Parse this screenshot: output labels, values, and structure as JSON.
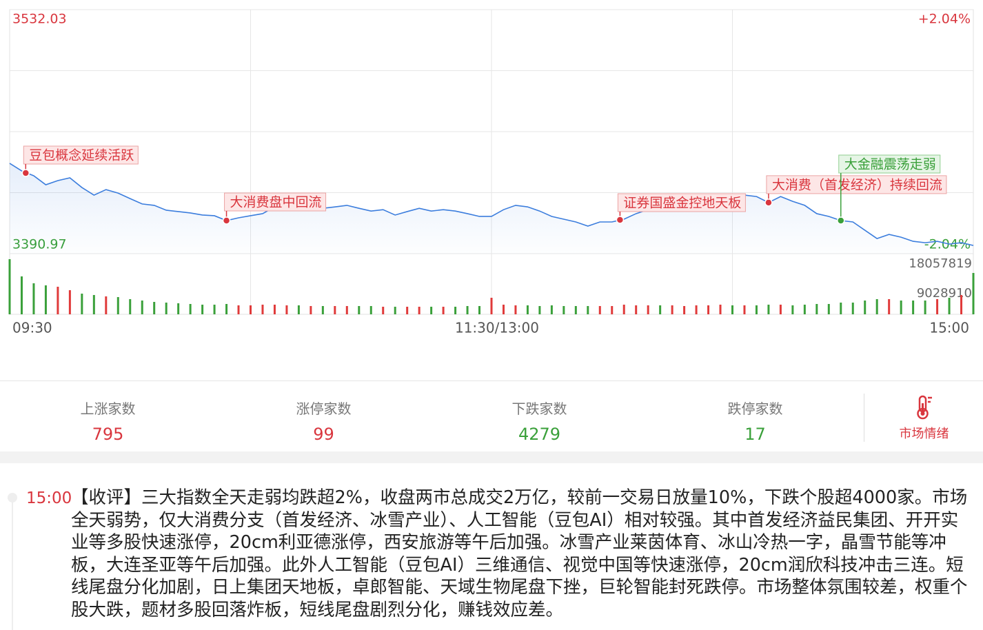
{
  "chart_data": {
    "type": "line",
    "xlim": [
      0,
      240
    ],
    "xticks": [
      {
        "value": 0,
        "label": "09:30"
      },
      {
        "value": 60,
        "label": null
      },
      {
        "value": 120,
        "label": "11:30/13:00"
      },
      {
        "value": 180,
        "label": null
      },
      {
        "value": 240,
        "label": "15:00"
      }
    ],
    "ylim": [
      3390.97,
      3532.03
    ],
    "yticks": [
      3532.03,
      {
        "value": 3496.77,
        "label": null
      },
      {
        "value": 3461.5,
        "label": null
      },
      {
        "value": 3426.24,
        "label": null
      },
      3390.97
    ],
    "y2lim": [
      -2.04,
      2.04
    ],
    "y2ticks": [
      {
        "value": 2.04,
        "label": "+2.04%"
      },
      {
        "value": -2.04,
        "label": "-2.04%"
      }
    ],
    "grid": true,
    "x": [
      0,
      3,
      6,
      9,
      12,
      15,
      18,
      21,
      24,
      27,
      30,
      33,
      36,
      39,
      42,
      45,
      48,
      51,
      54,
      57,
      60,
      63,
      66,
      69,
      72,
      75,
      78,
      81,
      84,
      87,
      90,
      93,
      96,
      99,
      102,
      105,
      108,
      111,
      114,
      117,
      120,
      123,
      126,
      129,
      132,
      135,
      138,
      141,
      144,
      147,
      150,
      153,
      156,
      159,
      162,
      165,
      168,
      171,
      174,
      177,
      180,
      183,
      186,
      189,
      192,
      195,
      198,
      201,
      204,
      207,
      210,
      213,
      216,
      219,
      222,
      225,
      228,
      231,
      234,
      237,
      240
    ],
    "series": [
      {
        "color": "#3b7ddd",
        "values": [
          3443.2,
          3438.8,
          3436.0,
          3430.8,
          3433.2,
          3434.8,
          3429.2,
          3424.8,
          3428.0,
          3426.0,
          3422.8,
          3419.7,
          3418.9,
          3416.1,
          3415.3,
          3414.5,
          3413.3,
          3412.9,
          3410.1,
          3411.7,
          3412.9,
          3414.1,
          3418.0,
          3418.9,
          3418.0,
          3418.4,
          3417.2,
          3418.0,
          3418.9,
          3417.2,
          3415.6,
          3416.4,
          3413.3,
          3415.3,
          3417.2,
          3415.6,
          3416.4,
          3415.6,
          3414.1,
          3412.5,
          3412.5,
          3416.4,
          3418.9,
          3418.0,
          3415.6,
          3412.5,
          3410.9,
          3409.3,
          3406.9,
          3409.3,
          3409.3,
          3410.9,
          3414.1,
          3416.4,
          3415.6,
          3417.2,
          3419.7,
          3419.7,
          3421.2,
          3425.2,
          3423.2,
          3424.8,
          3424.0,
          3420.5,
          3424.0,
          3421.2,
          3418.9,
          3414.1,
          3412.5,
          3410.1,
          3409.3,
          3404.5,
          3399.7,
          3402.1,
          3400.5,
          3398.1,
          3397.3,
          3398.1,
          3396.5,
          3397.3,
          3395.7
        ]
      }
    ],
    "volume": {
      "ylim": [
        0,
        18057819
      ],
      "yticks": [
        18057819,
        9028910
      ],
      "up_color": "#e03a3a",
      "down_color": "#3aa03a",
      "values": [
        16800000,
        11550000,
        9450000,
        8820000,
        8400000,
        7350000,
        6300000,
        5880000,
        5460000,
        5250000,
        4620000,
        4200000,
        3780000,
        3570000,
        3360000,
        3150000,
        2940000,
        2940000,
        3150000,
        2730000,
        2730000,
        2940000,
        2940000,
        2730000,
        2730000,
        2520000,
        2520000,
        2520000,
        2520000,
        2520000,
        2520000,
        2310000,
        2310000,
        2310000,
        2310000,
        2310000,
        2310000,
        2310000,
        2520000,
        2520000,
        5040000,
        2940000,
        2730000,
        2730000,
        2520000,
        2730000,
        2520000,
        2520000,
        2520000,
        2520000,
        2520000,
        2940000,
        2730000,
        2730000,
        2730000,
        2730000,
        2520000,
        2730000,
        2730000,
        2940000,
        2730000,
        2730000,
        2730000,
        2940000,
        2940000,
        2730000,
        2940000,
        3150000,
        3150000,
        3570000,
        3570000,
        4200000,
        4620000,
        4620000,
        4200000,
        4200000,
        4200000,
        4620000,
        5040000,
        5880000,
        12600000
      ]
    },
    "annotations": [
      {
        "text": "豆包概念延续活跃",
        "x": 4,
        "y": 3437.6,
        "color": "#d9363e"
      },
      {
        "text": "大消费盘中回流",
        "x": 54,
        "y": 3410.1,
        "color": "#d9363e"
      },
      {
        "text": "证券国盛金控地天板",
        "x": 152,
        "y": 3410.5,
        "color": "#d9363e"
      },
      {
        "text": "大消费（首发经济）持续回流",
        "x": 189,
        "y": 3420.5,
        "color": "#d9363e"
      },
      {
        "text": "大金融震荡走弱",
        "x": 207,
        "y": 3410.1,
        "color": "#3aa03a"
      }
    ]
  },
  "stats": [
    {
      "label": "上涨家数",
      "value": 795,
      "color": "#d9363e"
    },
    {
      "label": "涨停家数",
      "value": 99,
      "color": "#d9363e"
    },
    {
      "label": "下跌家数",
      "value": 4279,
      "color": "#3aa03a"
    },
    {
      "label": "跌停家数",
      "value": 17,
      "color": "#3aa03a"
    }
  ],
  "sentiment": "市场情绪",
  "news": {
    "time": "15:00",
    "text": "【收评】三大指数全天走弱均跌超2%，收盘两市总成交2万亿，较前一交易日放量10%，下跌个股超4000家。市场全天弱势，仅大消费分支（首发经济、冰雪产业）、人工智能（豆包AI）相对较强。其中首发经济益民集团、开开实业等多股快速涨停，20cm利亚德涨停，西安旅游等午后加强。冰雪产业莱茵体育、冰山冷热一字，晶雪节能等冲板，大连圣亚等午后加强。此外人工智能（豆包AI）三维通信、视觉中国等快速涨停，20cm润欣科技冲击三连。短线尾盘分化加剧，日上集团天地板，卓郎智能、天域生物尾盘下挫，巨轮智能封死跌停。市场整体氛围较差，权重个股大跌，题材多股回落炸板，短线尾盘剧烈分化，赚钱效应差。"
  }
}
